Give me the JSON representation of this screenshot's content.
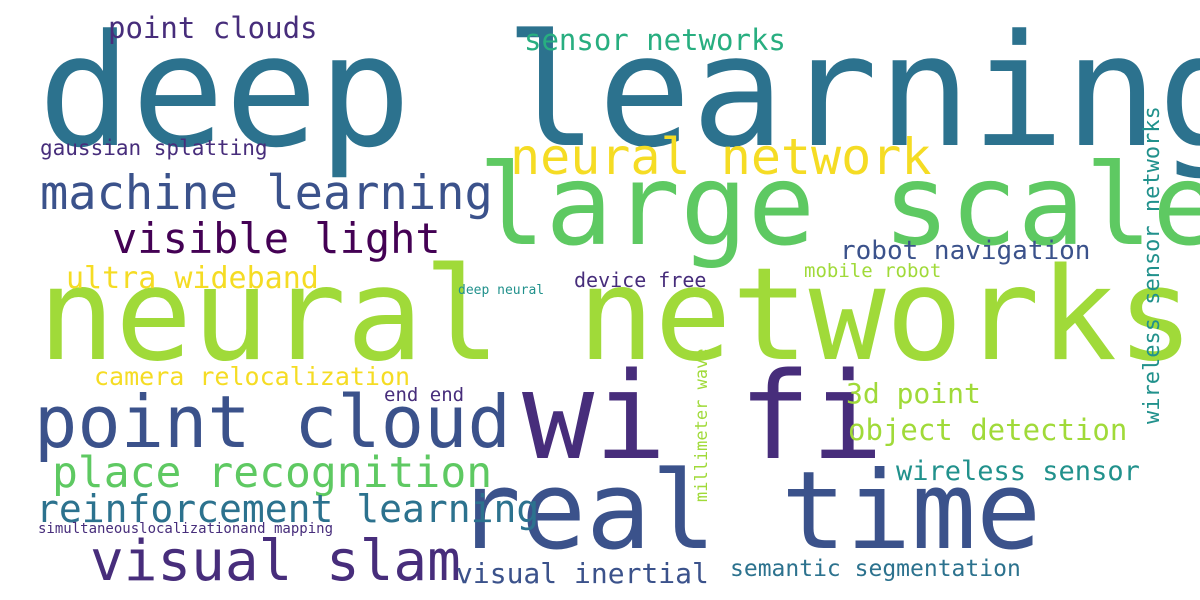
{
  "words": {
    "deep_learning": "deep learning",
    "neural_networks": "neural networks",
    "large_scale": "large scale",
    "wi_fi": "wi fi",
    "real_time": "real time",
    "point_cloud": "point cloud",
    "visual_slam": "visual slam",
    "neural_network": "neural network",
    "machine_learning": "machine learning",
    "visible_light": "visible light",
    "place_recognition": "place recognition",
    "reinforcement_learning": "reinforcement learning",
    "point_clouds": "point clouds",
    "sensor_networks": "sensor networks",
    "gaussian_splatting": "gaussian splatting",
    "ultra_wideband": "ultra wideband",
    "camera_relocalization": "camera relocalization",
    "robot_navigation": "robot navigation",
    "mobile_robot": "mobile robot",
    "device_free": "device free",
    "deep_neural": "deep neural",
    "point_3d": "3d point",
    "object_detection": "object detection",
    "wireless_sensor": "wireless sensor",
    "end_end": "end end",
    "visual_inertial": "visual inertial",
    "semantic_segmentation": "semantic segmentation",
    "simultaneous_localization": "simultaneouslocalizationand mapping",
    "wireless_sensor_networks": "wireless sensor networks",
    "millimeter_wave": "millimeter wave"
  },
  "colors": {
    "dark_purple": "#472d7b",
    "purple_blue": "#3b528b",
    "blue": "#2c728e",
    "teal": "#21918c",
    "green": "#28ae80",
    "light_green": "#5ec962",
    "yellow_green": "#a0da39",
    "yellow": "#f5dc24",
    "deep_violet": "#440154"
  }
}
